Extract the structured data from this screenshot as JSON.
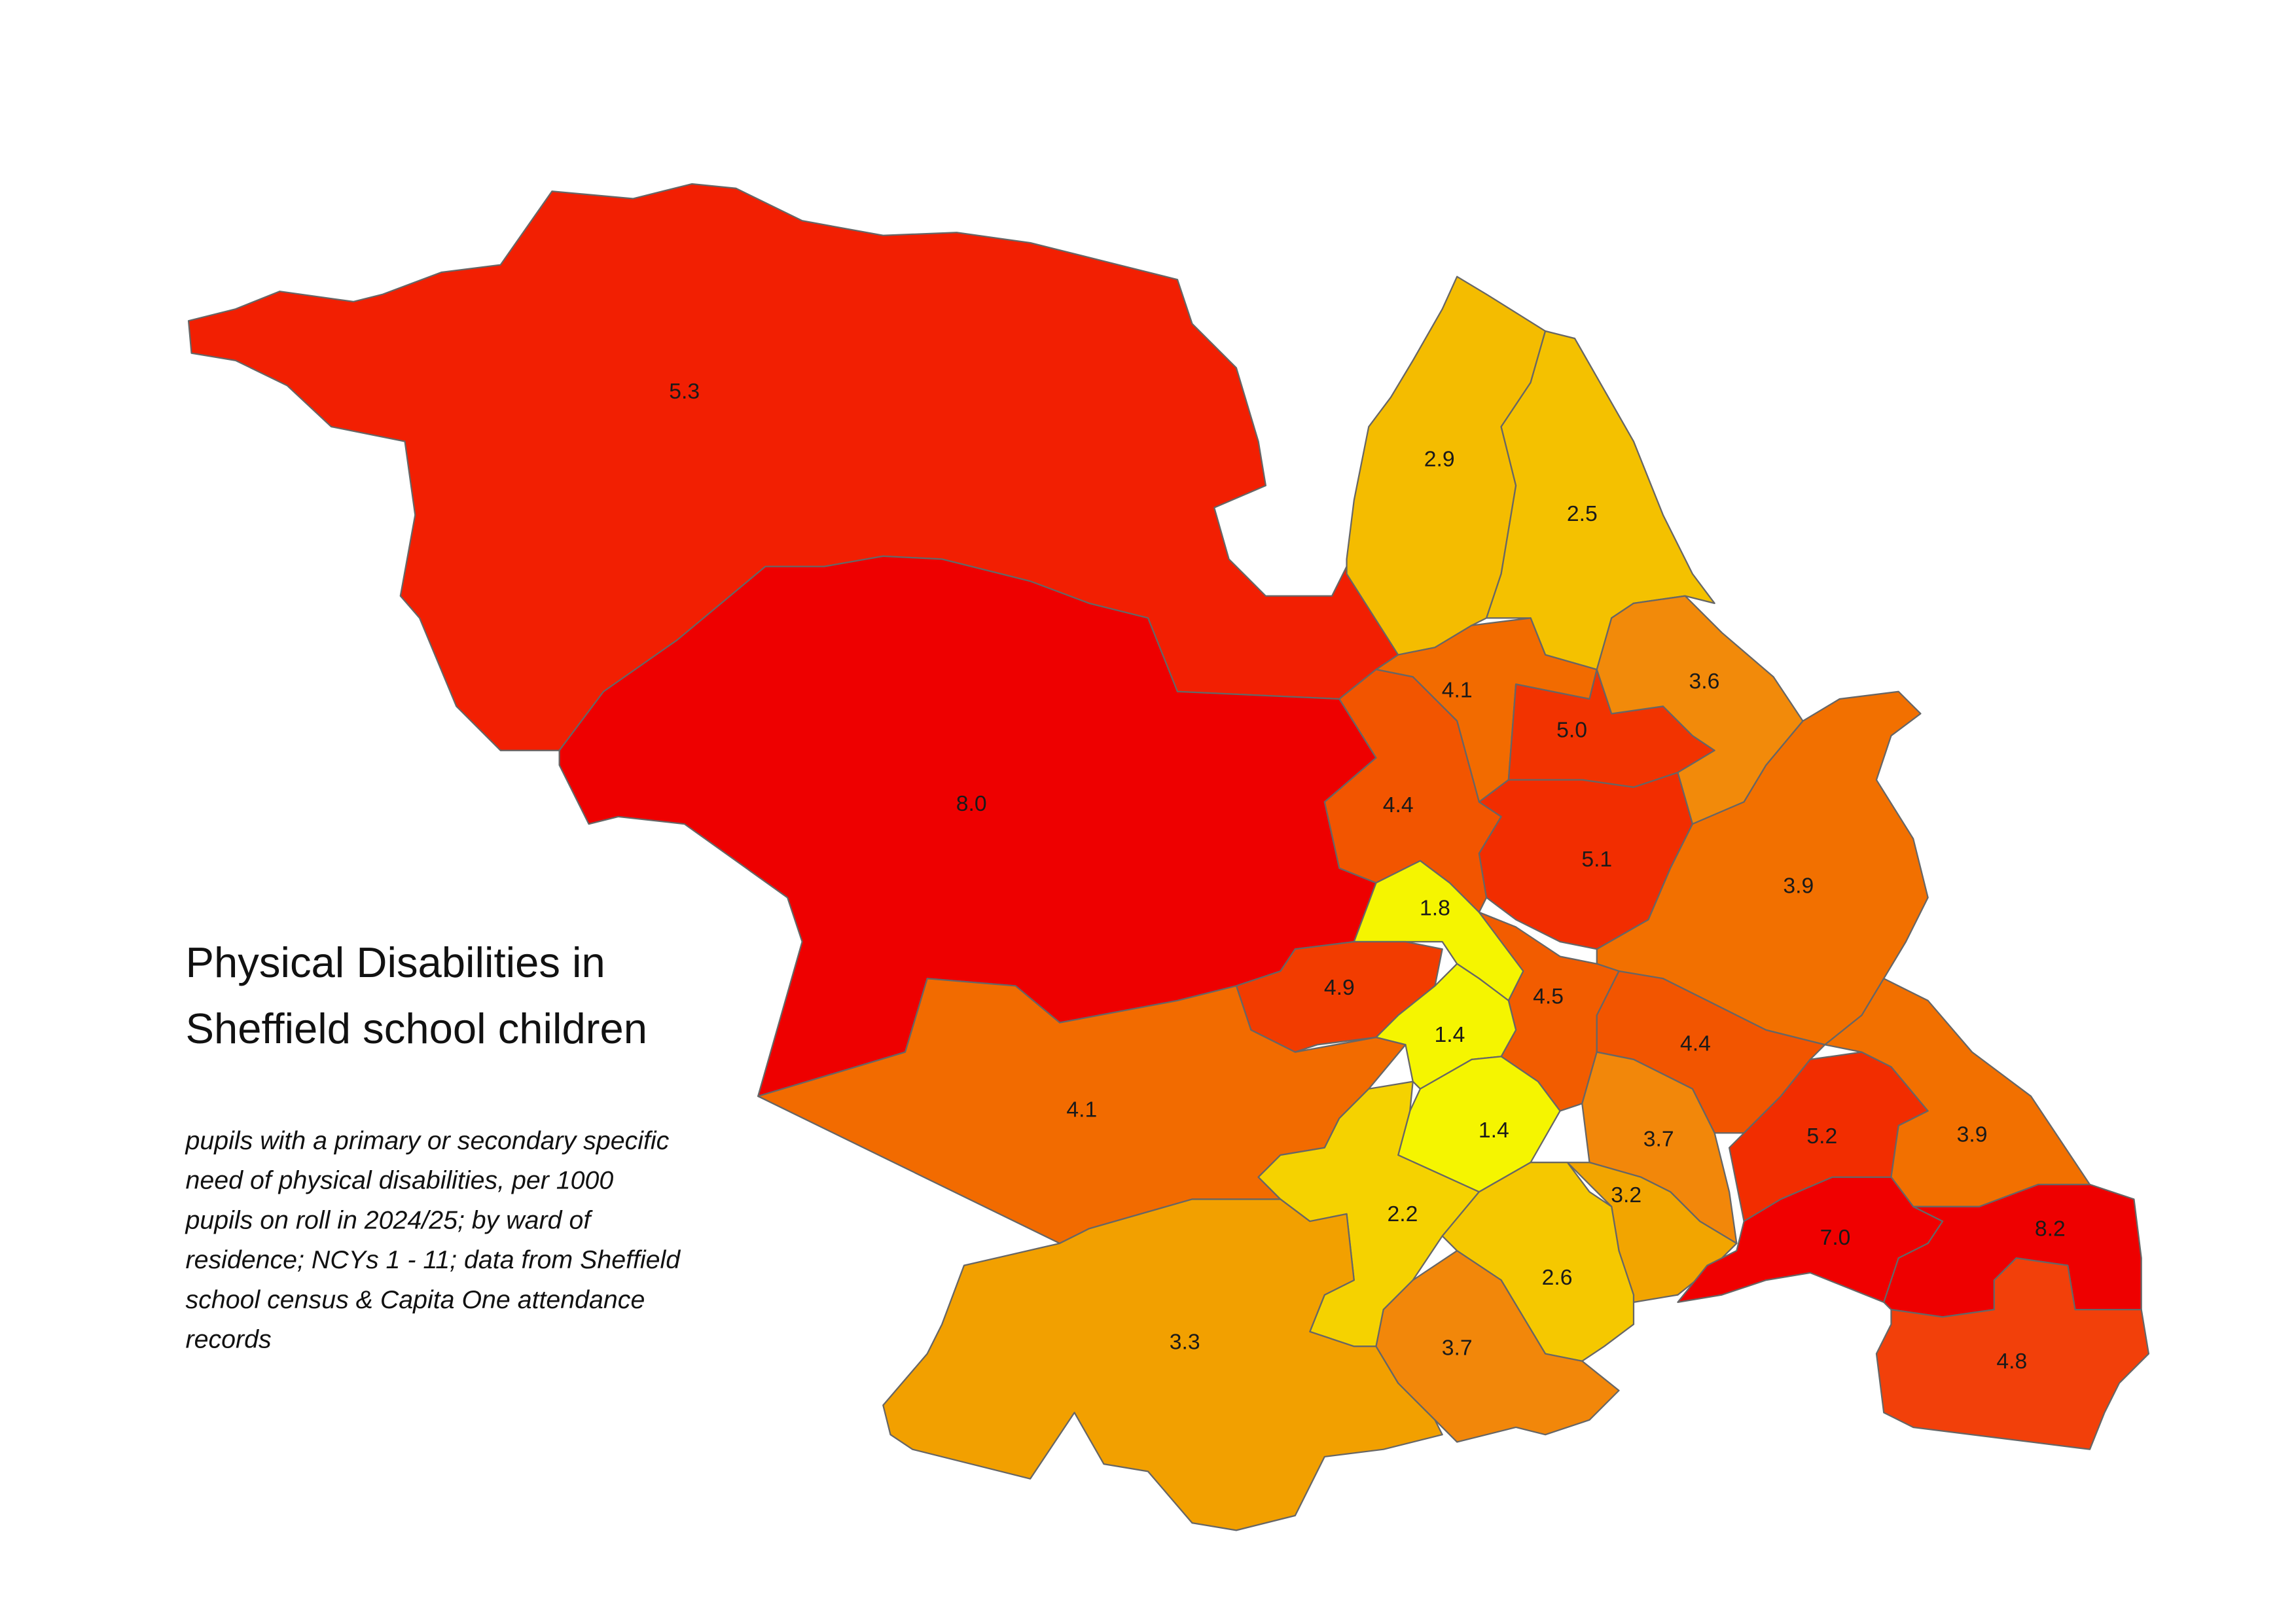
{
  "title": [
    "Physical Disabilities in",
    "Sheffield school children"
  ],
  "subtitle": [
    "pupils with a primary or secondary specific",
    "need of physical disabilities, per 1000",
    "pupils on roll in 2024/25; by ward of",
    "residence; NCYs 1 - 11; data from Sheffield",
    "school census & Capita One attendance",
    "records"
  ],
  "wards": {
    "values": [
      5.3,
      8.0,
      2.9,
      2.5,
      4.1,
      5.0,
      3.6,
      4.4,
      5.1,
      3.9,
      1.8,
      4.9,
      4.5,
      1.4,
      4.4,
      4.1,
      1.4,
      3.7,
      5.2,
      3.9,
      2.2,
      3.2,
      7.0,
      8.2,
      2.6,
      3.3,
      3.7,
      4.8
    ],
    "value_labels": [
      "5.3",
      "8.0",
      "2.9",
      "2.5",
      "4.1",
      "5.0",
      "3.6",
      "4.4",
      "5.1",
      "3.9",
      "1.8",
      "4.9",
      "4.5",
      "1.4",
      "4.4",
      "4.1",
      "1.4",
      "3.7",
      "5.2",
      "3.9",
      "2.2",
      "3.2",
      "7.0",
      "8.2",
      "2.6",
      "3.3",
      "3.7",
      "4.8"
    ],
    "colors": [
      "#f21f02",
      "#ee0000",
      "#f4bc00",
      "#f4c100",
      "#f26b00",
      "#f23300",
      "#f28a0a",
      "#f25500",
      "#f22d00",
      "#f27000",
      "#f5f500",
      "#f23c00",
      "#f25c00",
      "#f5f500",
      "#f25500",
      "#f26b00",
      "#f5f500",
      "#f2870a",
      "#f22d00",
      "#f27000",
      "#f5d200",
      "#f2a500",
      "#f00000",
      "#ee0000",
      "#f5c800",
      "#f2a000",
      "#f2870a",
      "#f2400a"
    ]
  }
}
